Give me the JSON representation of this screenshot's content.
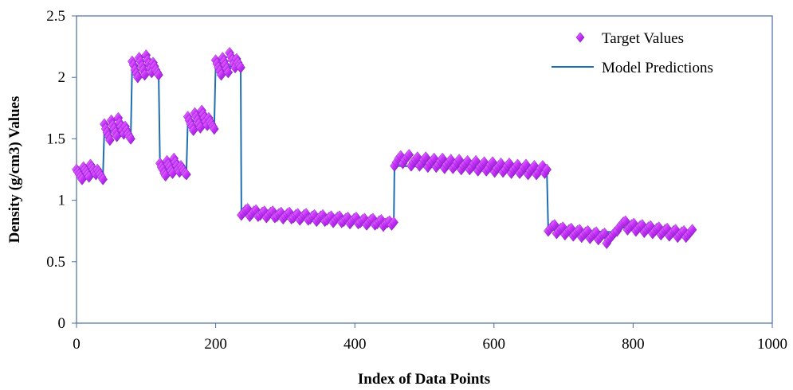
{
  "chart_data": {
    "type": "line",
    "title": "",
    "xlabel": "Index of Data Points",
    "ylabel": "Density (g/cm3) Values",
    "xlim": [
      0,
      1000
    ],
    "ylim": [
      0,
      2.5
    ],
    "x_ticks": [
      0,
      200,
      400,
      600,
      800,
      1000
    ],
    "y_ticks": [
      0,
      0.5,
      1,
      1.5,
      2,
      2.5
    ],
    "x_tick_labels": [
      "0",
      "200",
      "400",
      "600",
      "800",
      "1000"
    ],
    "y_tick_labels": [
      "0",
      "0.5",
      "1",
      "1.5",
      "2",
      "2.5"
    ],
    "grid": false,
    "legend_position": "top-right",
    "colors": {
      "target": "#cc33ff",
      "target_dark": "#8a1fc4",
      "model": "#1f6fb0",
      "axis": "#4a6fa0"
    },
    "series": [
      {
        "name": "Target Values",
        "marker": "diamond",
        "segments": [
          {
            "x": [
              0,
              2,
              4,
              6,
              8,
              10,
              12,
              14,
              16,
              18,
              20,
              22,
              24,
              26,
              28,
              30,
              32,
              34,
              36,
              38
            ],
            "y": [
              1.25,
              1.23,
              1.21,
              1.19,
              1.17,
              1.27,
              1.25,
              1.23,
              1.21,
              1.19,
              1.29,
              1.27,
              1.25,
              1.23,
              1.21,
              1.25,
              1.23,
              1.21,
              1.19,
              1.17
            ]
          },
          {
            "x": [
              40,
              42,
              44,
              46,
              48,
              50,
              52,
              54,
              56,
              58,
              60,
              62,
              64,
              66,
              68,
              70,
              72,
              74,
              76,
              78
            ],
            "y": [
              1.62,
              1.58,
              1.55,
              1.52,
              1.49,
              1.65,
              1.61,
              1.58,
              1.55,
              1.52,
              1.67,
              1.63,
              1.6,
              1.57,
              1.54,
              1.6,
              1.57,
              1.54,
              1.52,
              1.5
            ]
          },
          {
            "x": [
              80,
              82,
              84,
              86,
              88,
              90,
              92,
              94,
              96,
              98,
              100,
              102,
              104,
              106,
              108,
              110,
              112,
              114,
              116,
              118
            ],
            "y": [
              2.13,
              2.1,
              2.06,
              2.03,
              2.0,
              2.16,
              2.13,
              2.09,
              2.06,
              2.02,
              2.18,
              2.14,
              2.11,
              2.07,
              2.04,
              2.12,
              2.09,
              2.06,
              2.04,
              2.02
            ]
          },
          {
            "x": [
              120,
              122,
              124,
              126,
              128,
              130,
              132,
              134,
              136,
              138,
              140,
              142,
              144,
              146,
              148,
              150,
              152,
              154,
              156,
              158
            ],
            "y": [
              1.3,
              1.27,
              1.25,
              1.22,
              1.2,
              1.32,
              1.29,
              1.27,
              1.24,
              1.22,
              1.34,
              1.31,
              1.28,
              1.25,
              1.23,
              1.28,
              1.26,
              1.24,
              1.22,
              1.21
            ]
          },
          {
            "x": [
              160,
              162,
              164,
              166,
              168,
              170,
              172,
              174,
              176,
              178,
              180,
              182,
              184,
              186,
              188,
              190,
              192,
              194,
              196,
              198
            ],
            "y": [
              1.68,
              1.65,
              1.62,
              1.6,
              1.57,
              1.71,
              1.68,
              1.65,
              1.62,
              1.59,
              1.73,
              1.7,
              1.67,
              1.64,
              1.61,
              1.67,
              1.64,
              1.62,
              1.6,
              1.58
            ]
          },
          {
            "x": [
              200,
              202,
              204,
              206,
              208,
              210,
              212,
              214,
              216,
              218,
              220,
              222,
              224,
              226,
              228,
              230,
              232,
              234,
              236
            ],
            "y": [
              2.14,
              2.11,
              2.08,
              2.05,
              2.02,
              2.16,
              2.13,
              2.1,
              2.07,
              2.04,
              2.2,
              2.17,
              2.14,
              2.11,
              2.08,
              2.15,
              2.12,
              2.1,
              2.08
            ]
          },
          {
            "x": [
              237,
              240,
              243,
              246,
              249,
              252,
              255,
              258,
              261,
              264,
              267,
              270,
              273,
              276,
              279,
              282,
              285,
              288,
              291,
              294,
              297,
              300,
              303,
              306,
              309,
              312,
              315,
              318,
              321,
              324,
              327,
              330,
              333,
              336,
              339,
              342,
              345,
              348,
              351,
              354,
              357,
              360,
              363,
              366,
              369,
              372,
              375,
              378,
              381,
              384,
              387,
              390,
              393,
              396,
              399,
              402,
              405,
              408,
              411,
              414,
              417,
              420,
              423,
              426,
              429,
              432,
              435,
              438,
              441,
              444,
              447,
              450,
              453,
              456
            ],
            "y": [
              0.88,
              0.9,
              0.92,
              0.93,
              0.87,
              0.89,
              0.91,
              0.92,
              0.87,
              0.88,
              0.9,
              0.91,
              0.86,
              0.88,
              0.9,
              0.91,
              0.86,
              0.87,
              0.89,
              0.9,
              0.85,
              0.87,
              0.89,
              0.9,
              0.85,
              0.86,
              0.88,
              0.89,
              0.84,
              0.86,
              0.88,
              0.89,
              0.84,
              0.85,
              0.87,
              0.88,
              0.83,
              0.85,
              0.87,
              0.88,
              0.83,
              0.84,
              0.86,
              0.87,
              0.82,
              0.84,
              0.86,
              0.87,
              0.82,
              0.83,
              0.85,
              0.86,
              0.81,
              0.83,
              0.85,
              0.86,
              0.81,
              0.82,
              0.84,
              0.85,
              0.8,
              0.82,
              0.84,
              0.85,
              0.8,
              0.81,
              0.83,
              0.84,
              0.79,
              0.81,
              0.82,
              0.83,
              0.8,
              0.82
            ]
          },
          {
            "x": [
              457,
              460,
              463,
              466,
              469,
              472,
              475,
              478,
              481,
              484,
              487,
              490,
              493,
              496,
              499,
              502,
              505,
              508,
              511,
              514,
              517,
              520,
              523,
              526,
              529,
              532,
              535,
              538,
              541,
              544,
              547,
              550,
              553,
              556,
              559,
              562,
              565,
              568,
              571,
              574,
              577,
              580,
              583,
              586,
              589,
              592,
              595,
              598,
              601,
              604,
              607,
              610,
              613,
              616,
              619,
              622,
              625,
              628,
              631,
              634,
              637,
              640,
              643,
              646,
              649,
              652,
              655,
              658,
              661,
              664,
              667,
              670,
              673,
              676
            ],
            "y": [
              1.28,
              1.31,
              1.34,
              1.36,
              1.3,
              1.33,
              1.35,
              1.37,
              1.28,
              1.31,
              1.33,
              1.35,
              1.28,
              1.3,
              1.33,
              1.35,
              1.27,
              1.3,
              1.32,
              1.34,
              1.27,
              1.29,
              1.32,
              1.34,
              1.26,
              1.29,
              1.31,
              1.33,
              1.26,
              1.28,
              1.31,
              1.33,
              1.25,
              1.28,
              1.3,
              1.32,
              1.25,
              1.27,
              1.3,
              1.32,
              1.24,
              1.27,
              1.29,
              1.31,
              1.24,
              1.26,
              1.29,
              1.31,
              1.23,
              1.26,
              1.28,
              1.3,
              1.23,
              1.25,
              1.28,
              1.3,
              1.22,
              1.25,
              1.27,
              1.29,
              1.22,
              1.24,
              1.27,
              1.29,
              1.21,
              1.24,
              1.26,
              1.28,
              1.21,
              1.23,
              1.26,
              1.28,
              1.22,
              1.25
            ]
          },
          {
            "x": [
              678,
              681,
              684,
              687,
              690,
              693,
              696,
              699,
              702,
              705,
              708,
              711,
              714,
              717,
              720,
              723,
              726,
              729,
              732,
              735,
              738,
              741,
              744,
              747,
              750,
              753,
              756,
              759,
              762,
              765,
              768,
              771,
              774,
              777
            ],
            "y": [
              0.75,
              0.77,
              0.79,
              0.8,
              0.73,
              0.75,
              0.77,
              0.78,
              0.72,
              0.74,
              0.76,
              0.77,
              0.71,
              0.73,
              0.75,
              0.76,
              0.7,
              0.72,
              0.74,
              0.75,
              0.69,
              0.71,
              0.73,
              0.74,
              0.68,
              0.7,
              0.72,
              0.73,
              0.65,
              0.68,
              0.7,
              0.72,
              0.74,
              0.75
            ]
          },
          {
            "x": [
              780,
              783,
              786,
              789,
              792,
              795,
              798,
              801,
              804,
              807,
              810,
              813,
              816,
              819,
              822,
              825,
              828,
              831,
              834,
              837,
              840,
              843,
              846,
              849,
              852,
              855,
              858,
              861,
              864,
              867,
              870,
              873,
              876,
              879,
              882,
              885
            ],
            "y": [
              0.78,
              0.8,
              0.82,
              0.83,
              0.76,
              0.78,
              0.8,
              0.81,
              0.75,
              0.77,
              0.79,
              0.8,
              0.74,
              0.76,
              0.78,
              0.79,
              0.73,
              0.75,
              0.77,
              0.78,
              0.72,
              0.74,
              0.76,
              0.77,
              0.71,
              0.73,
              0.75,
              0.76,
              0.7,
              0.72,
              0.74,
              0.75,
              0.7,
              0.72,
              0.74,
              0.76
            ]
          }
        ]
      },
      {
        "name": "Model Predictions",
        "x": [
          0,
          38,
          38,
          40,
          40,
          78,
          78,
          80,
          80,
          118,
          118,
          120,
          120,
          158,
          158,
          160,
          160,
          198,
          198,
          200,
          200,
          236,
          236,
          237,
          237,
          456,
          456,
          457,
          457,
          676,
          676,
          678,
          678,
          777,
          777,
          780,
          780,
          885
        ],
        "y": [
          1.2,
          1.2,
          1.2,
          1.58,
          1.58,
          1.52,
          1.52,
          2.1,
          2.1,
          2.05,
          2.05,
          1.28,
          1.28,
          1.24,
          1.24,
          1.65,
          1.65,
          1.62,
          1.62,
          2.1,
          2.1,
          2.08,
          2.08,
          0.88,
          0.88,
          0.8,
          0.8,
          1.28,
          1.28,
          1.24,
          1.24,
          0.76,
          0.76,
          0.74,
          0.74,
          0.78,
          0.78,
          0.74
        ]
      }
    ]
  }
}
